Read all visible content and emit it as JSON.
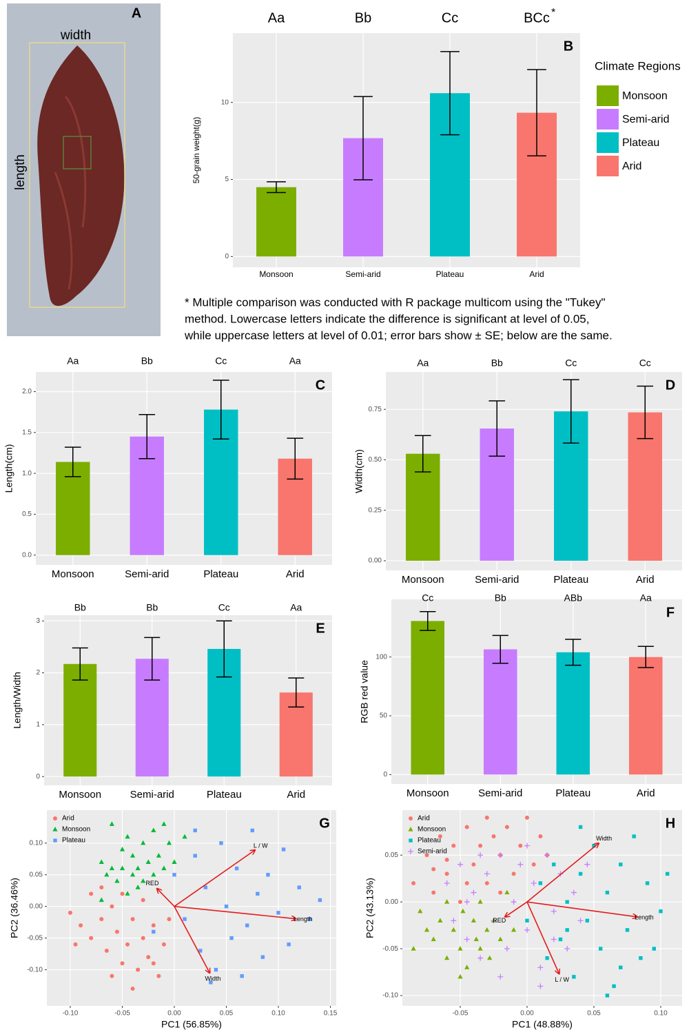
{
  "photo": {
    "label": "A",
    "width_label": "width",
    "length_label": "length"
  },
  "chart_data": [
    {
      "type": "bar",
      "panel": "B",
      "ylabel": "50-grain weight(g)",
      "categories": [
        "Monsoon",
        "Semi-arid",
        "Plateau",
        "Arid"
      ],
      "values": [
        4.5,
        7.68,
        10.6,
        9.33
      ],
      "errors": [
        0.35,
        2.7,
        2.7,
        2.8
      ],
      "colors": [
        "#7cae00",
        "#c77cff",
        "#00bfc4",
        "#f8766d"
      ],
      "letters": [
        "Aa",
        "Bb",
        "Cc",
        "BCc"
      ],
      "letter_mark": "*",
      "ylim": [
        -0.7,
        14.5
      ],
      "yticks": [
        0,
        5,
        10
      ],
      "legend_title": "Climate Regions",
      "note": [
        "* Multiple comparison was conducted with R package multicom using the \"Tukey\"",
        "method. Lowercase letters indicate the difference is significant at level of 0.05,",
        "while uppercase letters at level of 0.01; error bars show ± SE; below are the same."
      ]
    },
    {
      "type": "bar",
      "panel": "C",
      "ylabel": "Length(cm)",
      "categories": [
        "Monsoon",
        "Semi-arid",
        "Plateau",
        "Arid"
      ],
      "values": [
        1.14,
        1.45,
        1.78,
        1.18
      ],
      "errors": [
        0.18,
        0.27,
        0.36,
        0.25
      ],
      "colors": [
        "#7cae00",
        "#c77cff",
        "#00bfc4",
        "#f8766d"
      ],
      "letters": [
        "Aa",
        "Bb",
        "Cc",
        "Aa"
      ],
      "ylim": [
        -0.12,
        2.24
      ],
      "yticks": [
        {
          "value": 0,
          "label": "0.0"
        },
        {
          "value": 0.5,
          "label": "0.5"
        },
        {
          "value": 1,
          "label": "1.0"
        },
        {
          "value": 1.5,
          "label": "1.5"
        },
        {
          "value": 2,
          "label": "2.0"
        }
      ]
    },
    {
      "type": "bar",
      "panel": "D",
      "ylabel": "Width(cm)",
      "categories": [
        "Monsoon",
        "Semi-arid",
        "Plateau",
        "Arid"
      ],
      "values": [
        0.53,
        0.655,
        0.74,
        0.735
      ],
      "errors": [
        0.09,
        0.137,
        0.157,
        0.13
      ],
      "colors": [
        "#7cae00",
        "#c77cff",
        "#00bfc4",
        "#f8766d"
      ],
      "letters": [
        "Aa",
        "Bb",
        "Cc",
        "Cc"
      ],
      "ylim": [
        -0.048,
        0.935
      ],
      "yticks": [
        {
          "value": 0,
          "label": "0.00"
        },
        {
          "value": 0.25,
          "label": "0.25"
        },
        {
          "value": 0.5,
          "label": "0.50"
        },
        {
          "value": 0.75,
          "label": "0.75"
        }
      ]
    },
    {
      "type": "bar",
      "panel": "E",
      "ylabel": "Length/Width",
      "categories": [
        "Monsoon",
        "Semi-arid",
        "Plateau",
        "Arid"
      ],
      "values": [
        2.17,
        2.27,
        2.46,
        1.62
      ],
      "errors": [
        0.31,
        0.41,
        0.54,
        0.28
      ],
      "colors": [
        "#7cae00",
        "#c77cff",
        "#00bfc4",
        "#f8766d"
      ],
      "letters": [
        "Bb",
        "Bb",
        "Cc",
        "Aa"
      ],
      "ylim": [
        -0.17,
        3.11
      ],
      "yticks": [
        0,
        1,
        2,
        3
      ]
    },
    {
      "type": "bar",
      "panel": "F",
      "ylabel": "RGB red value",
      "categories": [
        "Monsoon",
        "Semi-arid",
        "Plateau",
        "Arid"
      ],
      "values": [
        130.6,
        106.5,
        104,
        100
      ],
      "errors": [
        8,
        11.8,
        11,
        9
      ],
      "colors": [
        "#7cae00",
        "#c77cff",
        "#00bfc4",
        "#f8766d"
      ],
      "letters": [
        "Cc",
        "Bb",
        "ABb",
        "Aa"
      ],
      "ylim": [
        -8,
        149
      ],
      "yticks": [
        0,
        50,
        100
      ]
    },
    {
      "type": "scatter",
      "panel": "G",
      "xlabel": "PC1 (56.85%)",
      "ylabel": "PC2 (36.46%)",
      "xlim": [
        -0.1225,
        0.1556
      ],
      "ylim": [
        -0.157,
        0.152
      ],
      "xticks": [
        {
          "value": -0.1,
          "label": "-0.10"
        },
        {
          "value": -0.05,
          "label": "-0.05"
        },
        {
          "value": 0,
          "label": "0.00"
        },
        {
          "value": 0.05,
          "label": "0.05"
        },
        {
          "value": 0.1,
          "label": "0.10"
        },
        {
          "value": 0.15,
          "label": "0.15"
        }
      ],
      "yticks": [
        {
          "value": -0.1,
          "label": "-0.10"
        },
        {
          "value": -0.05,
          "label": "-0.05"
        },
        {
          "value": 0,
          "label": "0.00"
        },
        {
          "value": 0.05,
          "label": "0.05"
        },
        {
          "value": 0.1,
          "label": "0.10"
        }
      ],
      "series": [
        {
          "name": "Arid",
          "color": "#f8766d",
          "marker": "circle",
          "x": [
            -0.1,
            -0.09,
            -0.08,
            -0.07,
            -0.065,
            -0.06,
            -0.055,
            -0.05,
            -0.045,
            -0.04,
            -0.035,
            -0.03,
            -0.03,
            -0.025,
            -0.02,
            -0.015,
            -0.01,
            -0.005,
            -0.08,
            -0.095,
            -0.06,
            -0.04,
            -0.02,
            -0.07,
            -0.05
          ],
          "y": [
            -0.01,
            -0.03,
            -0.05,
            -0.02,
            -0.07,
            0.0,
            -0.04,
            -0.09,
            -0.06,
            -0.02,
            -0.1,
            -0.05,
            0.01,
            -0.08,
            -0.03,
            -0.11,
            -0.06,
            -0.02,
            0.02,
            -0.06,
            -0.11,
            -0.13,
            -0.09,
            0.03,
            0.02
          ]
        },
        {
          "name": "Monsoon",
          "color": "#00ba38",
          "marker": "triangle",
          "x": [
            -0.07,
            -0.065,
            -0.06,
            -0.055,
            -0.05,
            -0.05,
            -0.045,
            -0.04,
            -0.04,
            -0.035,
            -0.03,
            -0.03,
            -0.025,
            -0.02,
            -0.02,
            -0.015,
            -0.01,
            -0.005,
            0.0,
            -0.06,
            -0.07,
            -0.045,
            -0.01,
            0.01,
            -0.035
          ],
          "y": [
            0.07,
            0.05,
            0.06,
            0.04,
            0.09,
            0.06,
            0.11,
            0.05,
            0.08,
            0.06,
            0.1,
            0.04,
            0.07,
            0.12,
            0.05,
            0.08,
            0.06,
            0.1,
            0.07,
            0.13,
            0.01,
            0.02,
            0.13,
            0.11,
            0.03
          ]
        },
        {
          "name": "Plateau",
          "color": "#619cff",
          "marker": "square",
          "x": [
            -0.02,
            0.0,
            0.01,
            0.02,
            0.025,
            0.03,
            0.04,
            0.045,
            0.05,
            0.055,
            0.06,
            0.07,
            0.075,
            0.08,
            0.085,
            0.09,
            0.1,
            0.105,
            0.11,
            0.12,
            0.13,
            0.14,
            0.02,
            0.035,
            0.065
          ],
          "y": [
            -0.04,
            0.05,
            -0.02,
            0.08,
            -0.07,
            0.03,
            -0.1,
            0.1,
            0.0,
            -0.05,
            0.06,
            -0.03,
            0.12,
            0.02,
            -0.08,
            0.05,
            -0.01,
            0.09,
            -0.06,
            0.03,
            -0.02,
            0.01,
            0.12,
            -0.12,
            -0.11
          ]
        }
      ],
      "arrows": [
        {
          "label": "L / W",
          "x": 0.0775,
          "y": 0.089
        },
        {
          "label": "Length",
          "x": 0.117,
          "y": -0.0196
        },
        {
          "label": "Width",
          "x": 0.034,
          "y": -0.105
        },
        {
          "label": "RED",
          "x": -0.0166,
          "y": 0.028
        }
      ]
    },
    {
      "type": "scatter",
      "panel": "H",
      "xlabel": "PC1 (48.88%)",
      "ylabel": "PC2 (43.13%)",
      "xlim": [
        -0.0933,
        0.116
      ],
      "ylim": [
        -0.111,
        0.098
      ],
      "xticks": [
        {
          "value": -0.05,
          "label": "-0.05"
        },
        {
          "value": 0,
          "label": "0.00"
        },
        {
          "value": 0.05,
          "label": "0.05"
        },
        {
          "value": 0.1,
          "label": "0.10"
        }
      ],
      "yticks": [
        {
          "value": -0.1,
          "label": "-0.10"
        },
        {
          "value": -0.05,
          "label": "-0.05"
        },
        {
          "value": 0,
          "label": "0.00"
        },
        {
          "value": 0.05,
          "label": "0.05"
        }
      ],
      "series": [
        {
          "name": "Arid",
          "color": "#f8766d",
          "marker": "circle",
          "x": [
            -0.085,
            -0.075,
            -0.07,
            -0.065,
            -0.06,
            -0.055,
            -0.05,
            -0.045,
            -0.04,
            -0.035,
            -0.03,
            -0.025,
            -0.02,
            -0.015,
            -0.01,
            -0.005,
            0.0,
            0.005,
            -0.045,
            -0.03,
            0.01,
            -0.06,
            -0.02,
            0.015,
            -0.07
          ],
          "y": [
            0.02,
            0.05,
            0.01,
            0.07,
            0.03,
            0.06,
            0.0,
            0.08,
            0.04,
            0.06,
            0.02,
            0.07,
            0.05,
            0.08,
            0.03,
            0.06,
            0.09,
            0.04,
            0.02,
            0.09,
            0.07,
            0.045,
            0.01,
            0.05,
            0.035
          ]
        },
        {
          "name": "Monsoon",
          "color": "#7cae00",
          "marker": "triangle",
          "x": [
            -0.08,
            -0.075,
            -0.07,
            -0.065,
            -0.06,
            -0.055,
            -0.05,
            -0.048,
            -0.045,
            -0.04,
            -0.038,
            -0.035,
            -0.03,
            -0.028,
            -0.025,
            -0.02,
            -0.015,
            -0.01,
            -0.085,
            -0.06,
            -0.05,
            -0.035
          ],
          "y": [
            -0.01,
            -0.03,
            -0.04,
            -0.02,
            -0.06,
            -0.03,
            -0.05,
            -0.01,
            -0.07,
            -0.02,
            -0.04,
            0.0,
            -0.03,
            -0.06,
            -0.02,
            -0.04,
            0.01,
            -0.03,
            -0.05,
            0.0,
            -0.08,
            -0.05
          ]
        },
        {
          "name": "Plateau",
          "color": "#00bfc4",
          "marker": "square",
          "x": [
            0.0,
            0.01,
            0.015,
            0.02,
            0.025,
            0.03,
            0.035,
            0.04,
            0.045,
            0.05,
            0.055,
            0.06,
            0.065,
            0.07,
            0.075,
            0.08,
            0.085,
            0.09,
            0.1,
            0.105,
            0.095,
            0.06,
            0.04,
            0.03,
            0.07
          ],
          "y": [
            -0.02,
            0.02,
            -0.06,
            0.04,
            -0.04,
            0.0,
            -0.08,
            0.03,
            -0.02,
            0.06,
            -0.05,
            0.01,
            -0.09,
            0.04,
            -0.03,
            0.07,
            -0.06,
            0.02,
            -0.01,
            0.03,
            -0.05,
            -0.1,
            0.08,
            -0.03,
            -0.07
          ]
        },
        {
          "name": "Semi-arid",
          "color": "#c77cff",
          "marker": "plus",
          "x": [
            -0.06,
            -0.055,
            -0.05,
            -0.045,
            -0.04,
            -0.035,
            -0.03,
            -0.025,
            -0.02,
            -0.015,
            -0.01,
            -0.005,
            0.0,
            0.005,
            0.01,
            0.015,
            0.02,
            0.025,
            0.03,
            0.035,
            0.04,
            0.045,
            -0.02,
            -0.035,
            0.0,
            0.01,
            -0.045,
            0.02
          ],
          "y": [
            0.02,
            -0.02,
            0.04,
            -0.04,
            0.01,
            -0.06,
            0.03,
            -0.02,
            0.05,
            -0.05,
            0.0,
            0.04,
            -0.03,
            0.02,
            -0.07,
            0.05,
            -0.01,
            0.03,
            -0.05,
            0.01,
            -0.02,
            0.04,
            -0.08,
            0.05,
            0.06,
            -0.09,
            0.0,
            -0.04
          ]
        }
      ],
      "arrows": [
        {
          "label": "Width",
          "x": 0.0536,
          "y": 0.0627
        },
        {
          "label": "Length",
          "x": 0.0825,
          "y": -0.016
        },
        {
          "label": "L / W",
          "x": 0.024,
          "y": -0.0768
        },
        {
          "label": "RED",
          "x": -0.0165,
          "y": -0.016
        }
      ]
    }
  ]
}
